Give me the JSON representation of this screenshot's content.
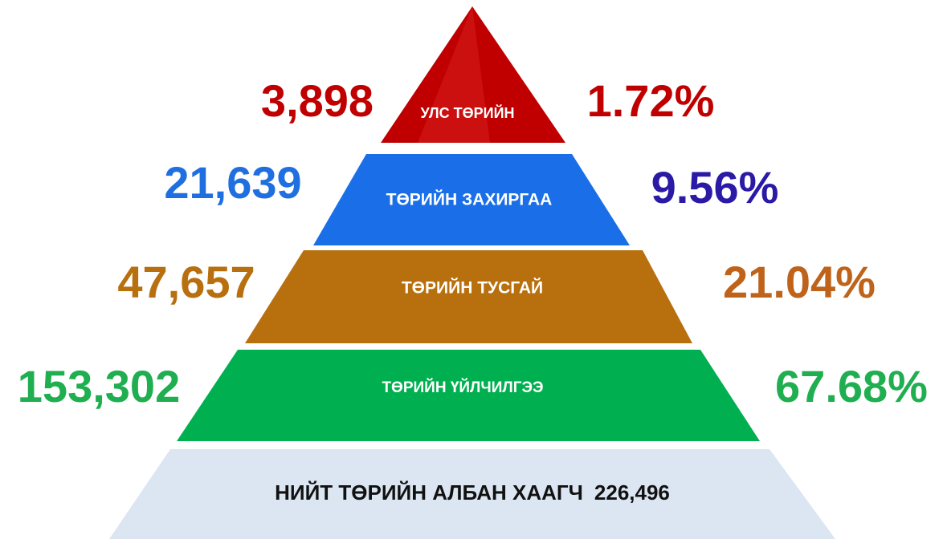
{
  "levels": [
    {
      "label": "УЛС ТӨРИЙН",
      "count": "3,898",
      "percent": "1.72%"
    },
    {
      "label": "ТӨРИЙН ЗАХИРГАА",
      "count": "21,639",
      "percent": "9.56%"
    },
    {
      "label": "ТӨРИЙН ТУСГАЙ",
      "count": "47,657",
      "percent": "21.04%"
    },
    {
      "label": "ТӨРИЙН ҮЙЛЧИЛГЭЭ",
      "count": "153,302",
      "percent": "67.68%"
    }
  ],
  "total": {
    "label": "НИЙТ ТӨРИЙН АЛБАН ХААГЧ",
    "value": "226,496"
  }
}
